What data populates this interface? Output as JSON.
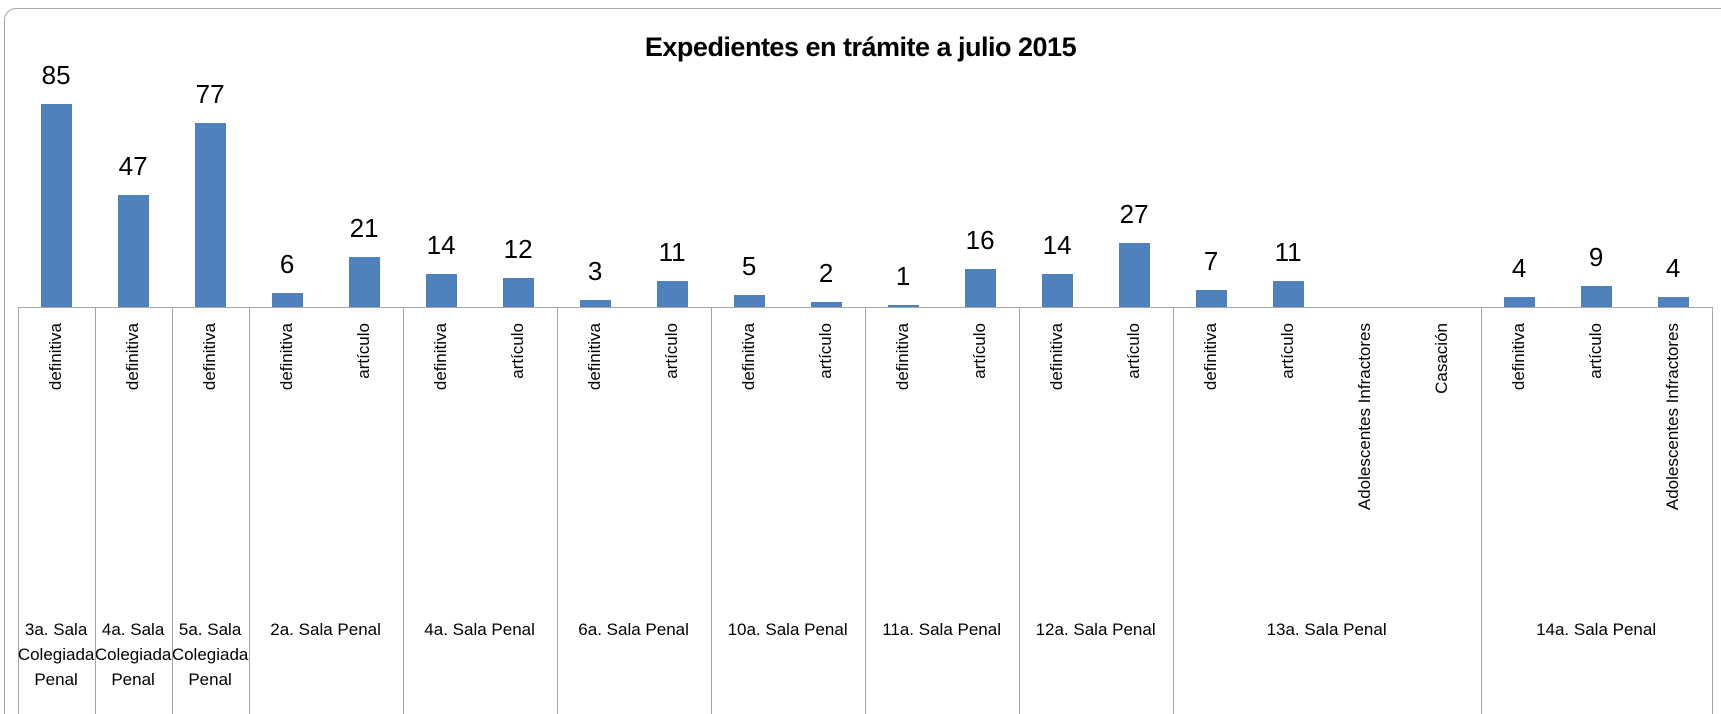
{
  "chart_data": {
    "type": "bar",
    "title": "Expedientes en trámite a julio 2015",
    "color": "#4f81bd",
    "groups": [
      {
        "label": "3a. Sala Colegiada Penal",
        "categories": [
          "definitiva"
        ],
        "values": [
          85
        ]
      },
      {
        "label": "4a. Sala Colegiada Penal",
        "categories": [
          "definitiva"
        ],
        "values": [
          47
        ]
      },
      {
        "label": "5a. Sala Colegiada Penal",
        "categories": [
          "definitiva"
        ],
        "values": [
          77
        ]
      },
      {
        "label": "2a. Sala Penal",
        "categories": [
          "definitiva",
          "artículo"
        ],
        "values": [
          6,
          21
        ]
      },
      {
        "label": "4a. Sala Penal",
        "categories": [
          "definitiva",
          "artículo"
        ],
        "values": [
          14,
          12
        ]
      },
      {
        "label": "6a. Sala Penal",
        "categories": [
          "definitiva",
          "artículo"
        ],
        "values": [
          3,
          11
        ]
      },
      {
        "label": "10a. Sala Penal",
        "categories": [
          "definitiva",
          "artículo"
        ],
        "values": [
          5,
          2
        ]
      },
      {
        "label": "11a. Sala Penal",
        "categories": [
          "definitiva",
          "artículo"
        ],
        "values": [
          1,
          16
        ]
      },
      {
        "label": "12a. Sala Penal",
        "categories": [
          "definitiva",
          "artículo"
        ],
        "values": [
          14,
          27
        ]
      },
      {
        "label": "13a. Sala Penal",
        "categories": [
          "definitiva",
          "artículo",
          "Adolescentes Infractores",
          "Casación"
        ],
        "values": [
          7,
          11,
          null,
          null
        ]
      },
      {
        "label": "14a. Sala Penal",
        "categories": [
          "definitiva",
          "artículo",
          "Adolescentes Infractores"
        ],
        "values": [
          4,
          9,
          4
        ]
      }
    ]
  }
}
